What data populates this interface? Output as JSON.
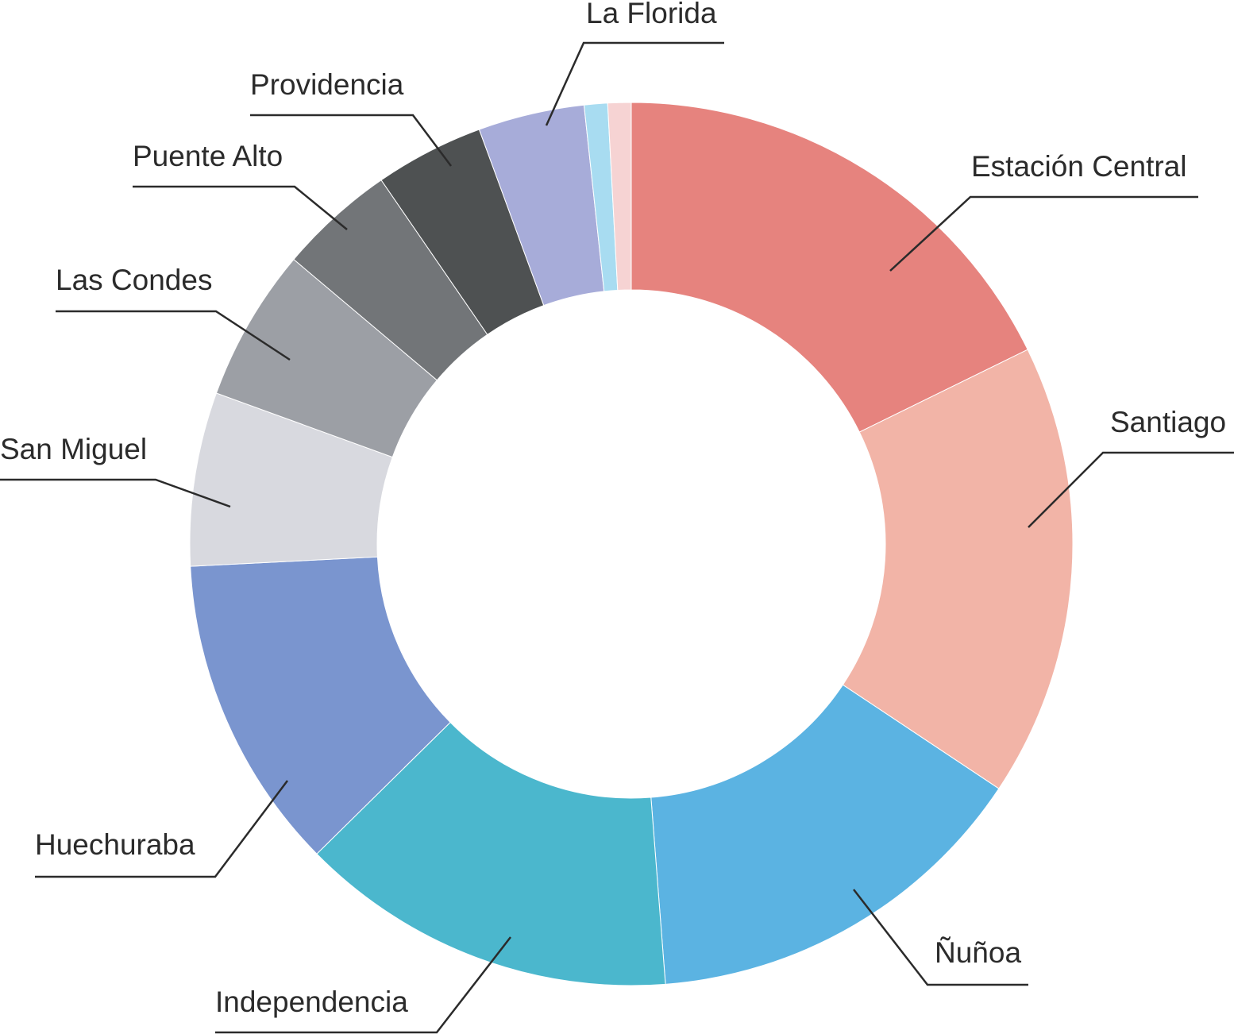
{
  "chart_data": {
    "type": "pie",
    "donut": true,
    "slices": [
      {
        "label": "Estación Central",
        "value": 18.7,
        "color": "#e6837e"
      },
      {
        "label": "Santiago",
        "value": 17.5,
        "color": "#f2b4a7"
      },
      {
        "label": "Ñuñoa",
        "value": 15.2,
        "color": "#5bb3e2"
      },
      {
        "label": "Independencia",
        "value": 14.6,
        "color": "#4bb7cd"
      },
      {
        "label": "Huechuraba",
        "value": 12.2,
        "color": "#7a95cf"
      },
      {
        "label": "San Miguel",
        "value": 6.7,
        "color": "#d8d9df"
      },
      {
        "label": "Las Condes",
        "value": 5.9,
        "color": "#9c9fa5"
      },
      {
        "label": "Puente Alto",
        "value": 4.5,
        "color": "#727578"
      },
      {
        "label": "Providencia",
        "value": 4.2,
        "color": "#4e5152"
      },
      {
        "label": "La Florida",
        "value": 4.1,
        "color": "#a7acd9"
      },
      {
        "label": "",
        "value": 0.9,
        "color": "#a8dcf1"
      },
      {
        "label": "",
        "value": 0.9,
        "color": "#f6d3d3"
      }
    ]
  }
}
